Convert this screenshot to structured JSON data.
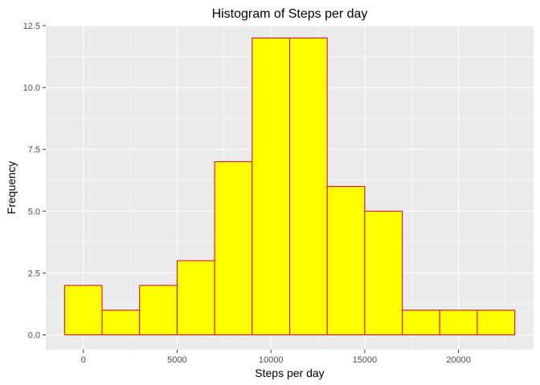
{
  "chart_data": {
    "type": "bar",
    "title": "Histogram of Steps per day",
    "xlabel": "Steps per day",
    "ylabel": "Frequency",
    "bins": [
      {
        "start": -1000,
        "end": 1000,
        "count": 2
      },
      {
        "start": 1000,
        "end": 3000,
        "count": 1
      },
      {
        "start": 3000,
        "end": 5000,
        "count": 2
      },
      {
        "start": 5000,
        "end": 7000,
        "count": 3
      },
      {
        "start": 7000,
        "end": 9000,
        "count": 7
      },
      {
        "start": 9000,
        "end": 11000,
        "count": 12
      },
      {
        "start": 11000,
        "end": 13000,
        "count": 12
      },
      {
        "start": 13000,
        "end": 15000,
        "count": 6
      },
      {
        "start": 15000,
        "end": 17000,
        "count": 5
      },
      {
        "start": 17000,
        "end": 19000,
        "count": 1
      },
      {
        "start": 19000,
        "end": 21000,
        "count": 1
      },
      {
        "start": 21000,
        "end": 23000,
        "count": 1
      }
    ],
    "xlim": [
      -2000,
      24000
    ],
    "ylim": [
      -0.6,
      12.5
    ],
    "x_ticks": [
      0,
      5000,
      10000,
      15000,
      20000
    ],
    "x_tick_labels": [
      "0",
      "5000",
      "10000",
      "15000",
      "20000"
    ],
    "y_ticks": [
      0,
      2.5,
      5,
      7.5,
      10,
      12.5
    ],
    "y_tick_labels": [
      "0.0",
      "2.5",
      "5.0",
      "7.5",
      "10.0",
      "12.5"
    ],
    "grid": true,
    "colors": {
      "fill": "#ffff00",
      "outline": "#dc143c",
      "panel": "#ebebeb",
      "grid_major": "#ffffff",
      "grid_minor": "#f5f5f5"
    }
  }
}
